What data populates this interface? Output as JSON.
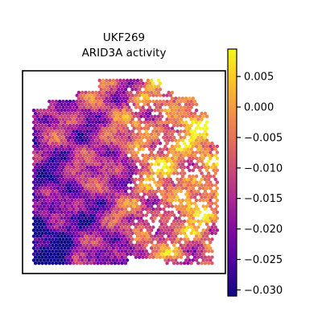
{
  "chart_data": {
    "type": "heatmap",
    "title_lines": [
      "UKF269",
      "ARID3A activity"
    ],
    "colorbar": {
      "range": [
        -0.031,
        0.0095
      ],
      "ticks": [
        0.005,
        0.0,
        -0.005,
        -0.01,
        -0.015,
        -0.02,
        -0.025,
        -0.03
      ],
      "tick_labels": [
        "0.005",
        "0.000",
        "−0.005",
        "−0.010",
        "−0.015",
        "−0.020",
        "−0.025",
        "−0.030"
      ],
      "colormap": "plasma",
      "colormap_stops": [
        "#0d0887",
        "#5302a3",
        "#8b0aa5",
        "#b83289",
        "#db5c68",
        "#f48849",
        "#febd2a",
        "#f0f921"
      ]
    },
    "grid": false,
    "legend": "colorbar-right"
  }
}
